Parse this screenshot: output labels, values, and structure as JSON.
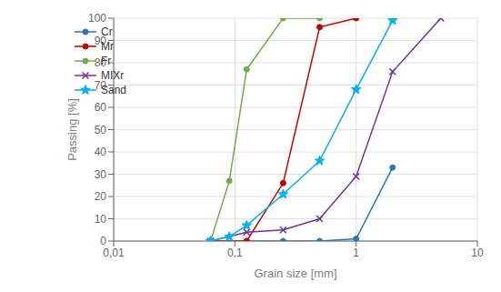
{
  "chart_data": {
    "type": "line",
    "xlabel": "Grain size [mm]",
    "ylabel": "Passing [%]",
    "log": "x",
    "xlim": [
      0.01,
      10
    ],
    "ylim": [
      0,
      100
    ],
    "xticks": [
      {
        "value": 0.01,
        "label": "0,01"
      },
      {
        "value": 0.1,
        "label": "0,1"
      },
      1,
      10
    ],
    "yticks": [
      0,
      10,
      20,
      30,
      40,
      50,
      60,
      70,
      80,
      90,
      100
    ],
    "grid": true,
    "legend": "upper left",
    "series": [
      {
        "name": "Cr",
        "color": "#2E75B6",
        "marker": "circle",
        "x": [
          0.063,
          0.125,
          0.25,
          0.5,
          1.0,
          2.0
        ],
        "values": [
          0,
          0,
          0,
          0,
          1,
          33
        ]
      },
      {
        "name": "Mr",
        "color": "#C00000",
        "marker": "circle",
        "x": [
          0.063,
          0.125,
          0.25,
          0.5,
          1.0
        ],
        "values": [
          0,
          0,
          26,
          96,
          100
        ]
      },
      {
        "name": "Fr",
        "color": "#70AD47",
        "marker": "circle",
        "x": [
          0.063,
          0.09,
          0.125,
          0.25,
          0.5
        ],
        "values": [
          0,
          27,
          77,
          100,
          100
        ]
      },
      {
        "name": "MIXr",
        "color": "#7030A0",
        "marker": "x",
        "x": [
          0.063,
          0.125,
          0.25,
          0.5,
          1.0,
          2.0,
          5.0
        ],
        "values": [
          0,
          4,
          5,
          10,
          29,
          76,
          100
        ]
      },
      {
        "name": "Sand",
        "color": "#00B0F0",
        "marker": "star",
        "x": [
          0.063,
          0.09,
          0.125,
          0.25,
          0.5,
          1.0,
          2.0
        ],
        "values": [
          0,
          2,
          7,
          21,
          36,
          68,
          99
        ]
      }
    ]
  }
}
